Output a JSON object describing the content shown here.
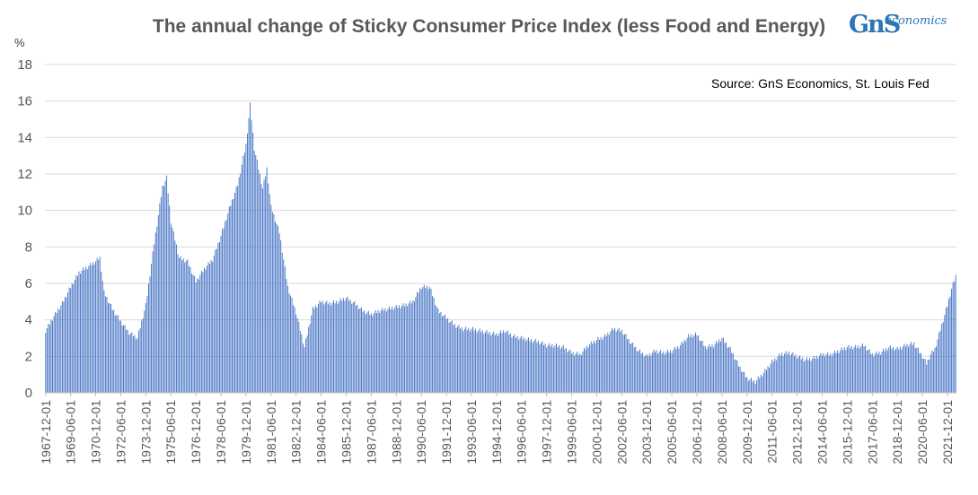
{
  "title": "The annual change of Sticky Consumer Price Index (less Food and Energy)",
  "logo": {
    "mark": "GnS",
    "word": "economics"
  },
  "source": "Source: GnS Economics, St. Louis Fed",
  "colors": {
    "bar": "#4472c4",
    "grid": "#d9d9d9",
    "axis": "#bfbfbf",
    "logo": "#2e75b6"
  },
  "chart_data": {
    "type": "bar",
    "ylabel": "%",
    "ylim": [
      0,
      18
    ],
    "yticks": [
      0,
      2,
      4,
      6,
      8,
      10,
      12,
      14,
      16,
      18
    ],
    "grid": true,
    "x_tick_labels": [
      "1967-12-01",
      "1969-06-01",
      "1970-12-01",
      "1972-06-01",
      "1973-12-01",
      "1975-06-01",
      "1976-12-01",
      "1978-06-01",
      "1979-12-01",
      "1981-06-01",
      "1982-12-01",
      "1984-06-01",
      "1985-12-01",
      "1987-06-01",
      "1988-12-01",
      "1990-06-01",
      "1991-12-01",
      "1993-06-01",
      "1994-12-01",
      "1996-06-01",
      "1997-12-01",
      "1999-06-01",
      "2000-12-01",
      "2002-06-01",
      "2003-12-01",
      "2005-06-01",
      "2006-12-01",
      "2008-06-01",
      "2009-12-01",
      "2011-06-01",
      "2012-12-01",
      "2014-06-01",
      "2015-12-01",
      "2017-06-01",
      "2018-12-01",
      "2020-06-01",
      "2021-12-01"
    ],
    "x_start": "1967-12",
    "x_end": "2022-06",
    "frequency": "monthly",
    "anchors": [
      [
        "1967-12",
        3.4
      ],
      [
        "1968-06",
        4.2
      ],
      [
        "1968-12",
        4.9
      ],
      [
        "1969-06",
        5.8
      ],
      [
        "1969-12",
        6.6
      ],
      [
        "1970-06",
        6.9
      ],
      [
        "1970-12",
        7.2
      ],
      [
        "1971-03",
        7.4
      ],
      [
        "1971-06",
        5.5
      ],
      [
        "1971-12",
        4.6
      ],
      [
        "1972-06",
        3.9
      ],
      [
        "1972-12",
        3.3
      ],
      [
        "1973-06",
        3.0
      ],
      [
        "1973-12",
        4.8
      ],
      [
        "1974-06",
        8.2
      ],
      [
        "1974-12",
        11.3
      ],
      [
        "1975-03",
        11.8
      ],
      [
        "1975-06",
        9.4
      ],
      [
        "1975-12",
        7.4
      ],
      [
        "1976-06",
        7.2
      ],
      [
        "1976-12",
        6.1
      ],
      [
        "1977-06",
        6.8
      ],
      [
        "1977-12",
        7.3
      ],
      [
        "1978-06",
        8.6
      ],
      [
        "1978-12",
        10.1
      ],
      [
        "1979-06",
        11.4
      ],
      [
        "1979-12",
        13.6
      ],
      [
        "1980-03",
        15.8
      ],
      [
        "1980-06",
        13.4
      ],
      [
        "1980-12",
        11.2
      ],
      [
        "1981-03",
        12.3
      ],
      [
        "1981-06",
        10.2
      ],
      [
        "1981-12",
        8.8
      ],
      [
        "1982-06",
        5.8
      ],
      [
        "1982-12",
        4.4
      ],
      [
        "1983-06",
        2.5
      ],
      [
        "1983-12",
        4.6
      ],
      [
        "1984-06",
        5.0
      ],
      [
        "1984-12",
        4.9
      ],
      [
        "1985-06",
        5.0
      ],
      [
        "1985-12",
        5.2
      ],
      [
        "1986-06",
        4.9
      ],
      [
        "1986-12",
        4.5
      ],
      [
        "1987-06",
        4.3
      ],
      [
        "1987-12",
        4.5
      ],
      [
        "1988-06",
        4.6
      ],
      [
        "1988-12",
        4.7
      ],
      [
        "1989-06",
        4.8
      ],
      [
        "1989-12",
        5.0
      ],
      [
        "1990-06",
        5.8
      ],
      [
        "1990-12",
        5.8
      ],
      [
        "1991-06",
        4.5
      ],
      [
        "1991-12",
        4.1
      ],
      [
        "1992-06",
        3.7
      ],
      [
        "1992-12",
        3.5
      ],
      [
        "1993-06",
        3.5
      ],
      [
        "1993-12",
        3.4
      ],
      [
        "1994-06",
        3.3
      ],
      [
        "1994-12",
        3.2
      ],
      [
        "1995-06",
        3.4
      ],
      [
        "1995-12",
        3.1
      ],
      [
        "1996-06",
        3.0
      ],
      [
        "1996-12",
        2.9
      ],
      [
        "1997-06",
        2.8
      ],
      [
        "1997-12",
        2.6
      ],
      [
        "1998-06",
        2.6
      ],
      [
        "1998-12",
        2.5
      ],
      [
        "1999-06",
        2.2
      ],
      [
        "1999-12",
        2.1
      ],
      [
        "2000-06",
        2.6
      ],
      [
        "2000-12",
        2.9
      ],
      [
        "2001-06",
        3.1
      ],
      [
        "2001-12",
        3.5
      ],
      [
        "2002-06",
        3.4
      ],
      [
        "2002-12",
        2.8
      ],
      [
        "2003-06",
        2.3
      ],
      [
        "2003-12",
        2.0
      ],
      [
        "2004-06",
        2.3
      ],
      [
        "2004-12",
        2.2
      ],
      [
        "2005-06",
        2.3
      ],
      [
        "2005-12",
        2.6
      ],
      [
        "2006-06",
        3.1
      ],
      [
        "2006-12",
        3.2
      ],
      [
        "2007-06",
        2.5
      ],
      [
        "2007-12",
        2.6
      ],
      [
        "2008-06",
        3.0
      ],
      [
        "2008-12",
        2.4
      ],
      [
        "2009-06",
        1.5
      ],
      [
        "2009-12",
        0.8
      ],
      [
        "2010-06",
        0.6
      ],
      [
        "2010-12",
        1.1
      ],
      [
        "2011-06",
        1.7
      ],
      [
        "2011-12",
        2.1
      ],
      [
        "2012-06",
        2.2
      ],
      [
        "2012-12",
        2.0
      ],
      [
        "2013-06",
        1.8
      ],
      [
        "2013-12",
        1.9
      ],
      [
        "2014-06",
        2.1
      ],
      [
        "2014-12",
        2.1
      ],
      [
        "2015-06",
        2.3
      ],
      [
        "2015-12",
        2.5
      ],
      [
        "2016-06",
        2.5
      ],
      [
        "2016-12",
        2.6
      ],
      [
        "2017-06",
        2.1
      ],
      [
        "2017-12",
        2.2
      ],
      [
        "2018-06",
        2.5
      ],
      [
        "2018-12",
        2.4
      ],
      [
        "2019-06",
        2.6
      ],
      [
        "2019-12",
        2.7
      ],
      [
        "2020-06",
        2.0
      ],
      [
        "2020-09",
        1.6
      ],
      [
        "2020-12",
        2.1
      ],
      [
        "2021-03",
        2.4
      ],
      [
        "2021-06",
        3.2
      ],
      [
        "2021-12",
        4.8
      ],
      [
        "2022-03",
        5.7
      ],
      [
        "2022-06",
        6.4
      ]
    ]
  }
}
